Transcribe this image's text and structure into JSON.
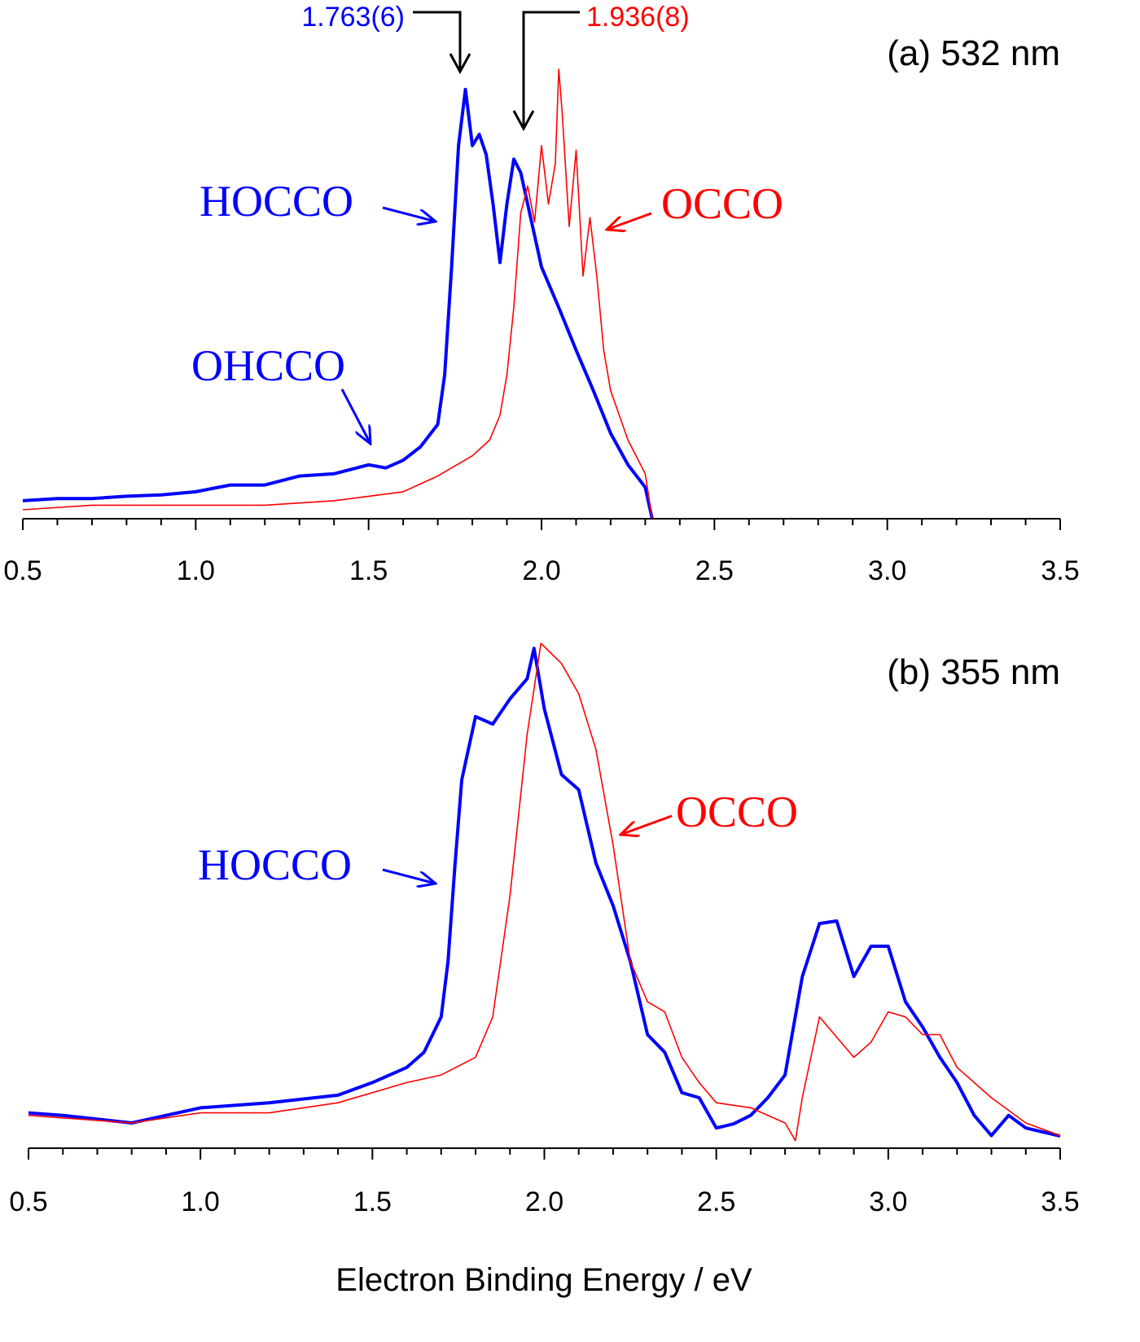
{
  "chart_data": [
    {
      "type": "line",
      "title": "(a) 532 nm",
      "xlim": [
        0.5,
        3.5
      ],
      "ylim": [
        0,
        1
      ],
      "xticks": [
        0.5,
        {
          "value": 1,
          "label": "1.0"
        },
        1.5,
        {
          "value": 2,
          "label": "2.0"
        },
        2.5,
        {
          "value": 3,
          "label": "3.0"
        },
        3.5
      ],
      "minor_xticks": [
        0.6,
        0.7,
        0.8,
        0.9,
        1.1,
        1.2,
        1.3,
        1.4,
        1.6,
        1.7,
        1.8,
        1.9,
        2.1,
        2.2,
        2.3,
        2.4,
        2.6,
        2.7,
        2.8,
        2.9,
        3.1,
        3.2,
        3.3,
        3.4
      ],
      "series": [
        {
          "name": "HOCCO",
          "color": "#0000ff",
          "linewidth": 4,
          "x": [
            0.5,
            0.6,
            0.7,
            0.8,
            0.9,
            1.0,
            1.1,
            1.2,
            1.3,
            1.4,
            1.5,
            1.55,
            1.6,
            1.65,
            1.7,
            1.72,
            1.74,
            1.76,
            1.78,
            1.8,
            1.82,
            1.84,
            1.86,
            1.88,
            1.9,
            1.92,
            1.94,
            1.96,
            1.98,
            2.0,
            2.05,
            2.1,
            2.15,
            2.2,
            2.25,
            2.3,
            2.32
          ],
          "values": [
            0.04,
            0.045,
            0.045,
            0.05,
            0.053,
            0.06,
            0.075,
            0.075,
            0.095,
            0.1,
            0.12,
            0.113,
            0.13,
            0.16,
            0.21,
            0.32,
            0.56,
            0.83,
            0.955,
            0.83,
            0.855,
            0.81,
            0.7,
            0.57,
            0.7,
            0.8,
            0.77,
            0.7,
            0.63,
            0.56,
            0.47,
            0.375,
            0.285,
            0.19,
            0.12,
            0.07,
            0
          ]
        },
        {
          "name": "OCCO",
          "color": "#ff0000",
          "linewidth": 1.6,
          "x": [
            0.5,
            0.7,
            1.0,
            1.2,
            1.4,
            1.6,
            1.7,
            1.8,
            1.85,
            1.88,
            1.9,
            1.92,
            1.94,
            1.96,
            1.98,
            2.0,
            2.02,
            2.04,
            2.05,
            2.06,
            2.08,
            2.1,
            2.12,
            2.14,
            2.16,
            2.18,
            2.2,
            2.25,
            2.3,
            2.32
          ],
          "values": [
            0.02,
            0.03,
            0.03,
            0.03,
            0.04,
            0.06,
            0.095,
            0.14,
            0.175,
            0.23,
            0.32,
            0.47,
            0.68,
            0.74,
            0.66,
            0.83,
            0.7,
            0.79,
            1.0,
            0.9,
            0.65,
            0.82,
            0.54,
            0.67,
            0.54,
            0.375,
            0.285,
            0.175,
            0.1,
            0
          ]
        }
      ],
      "annotations": [
        {
          "text": "HOCCO",
          "color": "#0000ff"
        },
        {
          "text": "OCCO",
          "color": "#ff0000"
        },
        {
          "text": "OHCCO",
          "color": "#0000ff"
        },
        {
          "text": "1.763(6)",
          "color": "#0000ff"
        },
        {
          "text": "1.936(8)",
          "color": "#ff0000"
        }
      ]
    },
    {
      "type": "line",
      "title": "(b) 355 nm",
      "x_label": "Electron Binding Energy / eV",
      "xlim": [
        0.5,
        3.5
      ],
      "ylim": [
        0,
        1
      ],
      "xticks": [
        0.5,
        {
          "value": 1,
          "label": "1.0"
        },
        1.5,
        {
          "value": 2,
          "label": "2.0"
        },
        2.5,
        {
          "value": 3,
          "label": "3.0"
        },
        3.5
      ],
      "minor_xticks": [
        0.6,
        0.7,
        0.8,
        0.9,
        1.1,
        1.2,
        1.3,
        1.4,
        1.6,
        1.7,
        1.8,
        1.9,
        2.1,
        2.2,
        2.3,
        2.4,
        2.6,
        2.7,
        2.8,
        2.9,
        3.1,
        3.2,
        3.3,
        3.4
      ],
      "series": [
        {
          "name": "HOCCO",
          "color": "#0000ff",
          "linewidth": 4,
          "x": [
            0.5,
            0.6,
            0.8,
            1.0,
            1.2,
            1.4,
            1.5,
            1.6,
            1.65,
            1.7,
            1.72,
            1.74,
            1.76,
            1.8,
            1.85,
            1.9,
            1.95,
            1.97,
            2.0,
            2.05,
            2.1,
            2.15,
            2.2,
            2.25,
            2.3,
            2.35,
            2.4,
            2.45,
            2.5,
            2.55,
            2.6,
            2.65,
            2.7,
            2.75,
            2.8,
            2.85,
            2.9,
            2.95,
            3.0,
            3.05,
            3.1,
            3.15,
            3.2,
            3.25,
            3.3,
            3.35,
            3.4,
            3.45,
            3.5
          ],
          "values": [
            0.07,
            0.065,
            0.05,
            0.08,
            0.09,
            0.105,
            0.13,
            0.16,
            0.19,
            0.26,
            0.37,
            0.56,
            0.73,
            0.855,
            0.84,
            0.89,
            0.93,
            0.99,
            0.87,
            0.74,
            0.71,
            0.565,
            0.48,
            0.37,
            0.225,
            0.19,
            0.11,
            0.1,
            0.04,
            0.048,
            0.065,
            0.1,
            0.145,
            0.34,
            0.445,
            0.45,
            0.34,
            0.4,
            0.4,
            0.29,
            0.24,
            0.18,
            0.13,
            0.065,
            0.025,
            0.065,
            0.04,
            0.032,
            0.024
          ]
        },
        {
          "name": "OCCO",
          "color": "#ff0000",
          "linewidth": 1.6,
          "x": [
            0.5,
            0.8,
            1.0,
            1.2,
            1.4,
            1.6,
            1.7,
            1.8,
            1.85,
            1.9,
            1.95,
            1.99,
            2.05,
            2.1,
            2.15,
            2.2,
            2.25,
            2.3,
            2.35,
            2.4,
            2.45,
            2.5,
            2.6,
            2.7,
            2.73,
            2.75,
            2.8,
            2.85,
            2.9,
            2.95,
            3.0,
            3.05,
            3.1,
            3.15,
            3.2,
            3.3,
            3.4,
            3.5
          ],
          "values": [
            0.065,
            0.05,
            0.07,
            0.07,
            0.09,
            0.13,
            0.145,
            0.18,
            0.26,
            0.5,
            0.82,
            1.0,
            0.96,
            0.9,
            0.79,
            0.6,
            0.37,
            0.29,
            0.27,
            0.18,
            0.13,
            0.09,
            0.08,
            0.05,
            0.015,
            0.1,
            0.26,
            0.22,
            0.18,
            0.21,
            0.27,
            0.26,
            0.225,
            0.225,
            0.16,
            0.1,
            0.05,
            0.025
          ]
        }
      ],
      "annotations": [
        {
          "text": "HOCCO",
          "color": "#0000ff"
        },
        {
          "text": "OCCO",
          "color": "#ff0000"
        }
      ]
    }
  ]
}
